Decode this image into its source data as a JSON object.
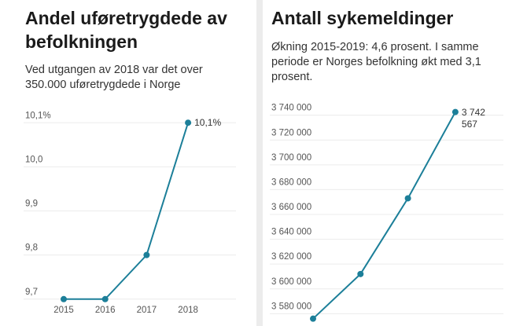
{
  "chart_data": [
    {
      "type": "line",
      "title": "Andel uføretrygdede av befolkningen",
      "subtitle": "Ved utgangen av 2018 var det over 350.000 uføretrygdede i Norge",
      "categories": [
        "2015",
        "2016",
        "2017",
        "2018"
      ],
      "series": [
        {
          "color": "#1c7f99",
          "values": [
            9.7,
            9.7,
            9.8,
            10.1
          ],
          "value_labels": [
            null,
            null,
            null,
            "10,1%"
          ]
        }
      ],
      "ylim": [
        9.68,
        10.12
      ],
      "yticks": [
        {
          "value": 9.7,
          "label": "9,7"
        },
        {
          "value": 9.8,
          "label": "9,8"
        },
        {
          "value": 9.9,
          "label": "9,9"
        },
        {
          "value": 10.0,
          "label": "10,0"
        },
        {
          "value": 10.1,
          "label": "10,1%"
        }
      ],
      "grid": true
    },
    {
      "type": "line",
      "title": "Antall sykemeldinger",
      "subtitle": "Økning 2015-2019: 4,6 prosent. I samme periode er Norges befolkning økt med 3,1 prosent.",
      "categories": [
        null,
        null,
        null,
        null
      ],
      "series": [
        {
          "color": "#1c7f99",
          "values": [
            3576000,
            3612000,
            3673000,
            3742567
          ],
          "value_labels": [
            null,
            null,
            null,
            "3 742 567"
          ]
        }
      ],
      "ylim": [
        3572000,
        3748000
      ],
      "yticks": [
        {
          "value": 3580000,
          "label": "3 580 000"
        },
        {
          "value": 3600000,
          "label": "3 600 000"
        },
        {
          "value": 3620000,
          "label": "3 620 000"
        },
        {
          "value": 3640000,
          "label": "3 640 000"
        },
        {
          "value": 3660000,
          "label": "3 660 000"
        },
        {
          "value": 3680000,
          "label": "3 680 000"
        },
        {
          "value": 3700000,
          "label": "3 700 000"
        },
        {
          "value": 3720000,
          "label": "3 720 000"
        },
        {
          "value": 3740000,
          "label": "3 740 000"
        }
      ],
      "grid": true
    }
  ]
}
